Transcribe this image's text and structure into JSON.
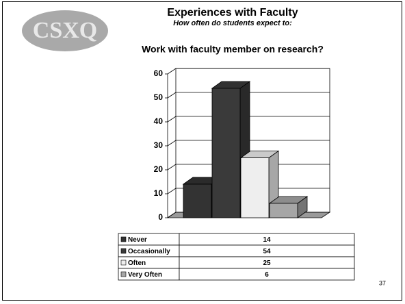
{
  "logo": "CSXQ",
  "page_number": "37",
  "chart_data": {
    "type": "bar3d",
    "title": "Experiences with Faculty",
    "subtitle": "How often do students expect to:",
    "question": "Work with faculty member on research?",
    "categories": [
      "Never",
      "Occasionally",
      "Often",
      "Very Often"
    ],
    "values": [
      14,
      54,
      25,
      6
    ],
    "colors": [
      "#333333",
      "#3a3a3a",
      "#eeeeee",
      "#a6a6a6"
    ],
    "ylim": [
      0,
      60
    ],
    "yticks": [
      0,
      10,
      20,
      30,
      40,
      50,
      60
    ],
    "grid": true
  }
}
